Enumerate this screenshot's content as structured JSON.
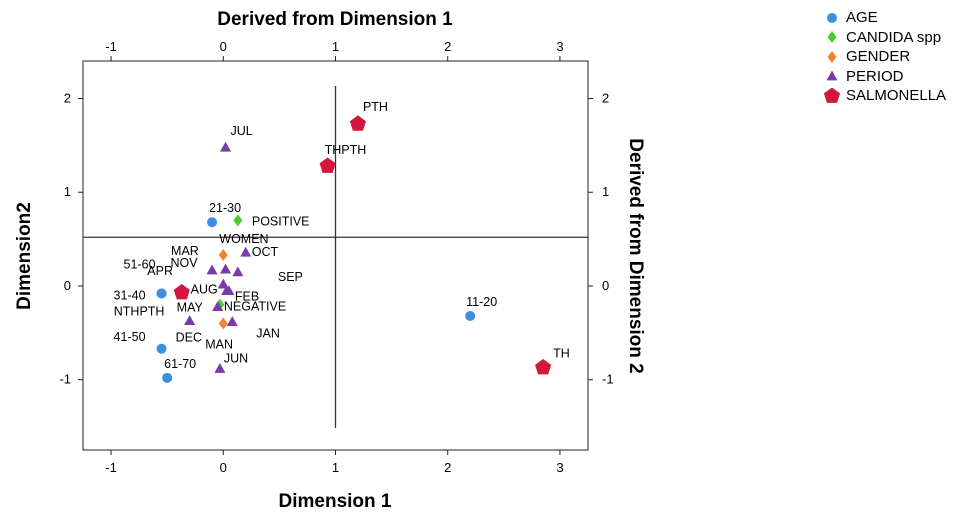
{
  "chart_data": {
    "type": "scatter",
    "title": "",
    "xlabel": "Dimension 1",
    "ylabel": "Dimension2",
    "top_axis_label": "Derived from Dimension 1",
    "right_axis_label": "Derived from Dimension 2",
    "xlim": [
      -1.25,
      3.25
    ],
    "ylim": [
      -1.75,
      2.4
    ],
    "xticks": [
      "-1",
      "0",
      "1",
      "2",
      "3"
    ],
    "yticks": [
      "-1",
      "0",
      "1",
      "2"
    ],
    "xtick_values": [
      -1,
      0,
      1,
      2,
      3
    ],
    "ytick_values": [
      -1,
      0,
      1,
      2
    ],
    "reference_lines": {
      "x": 1.0,
      "y": 0.52
    },
    "legend_position": "top-right",
    "series": [
      {
        "name": "AGE",
        "color": "#3d8fe0",
        "marker": "circle",
        "points": [
          {
            "label": "21-30",
            "x": -0.1,
            "y": 0.68
          },
          {
            "label": "51-60",
            "x": -0.55,
            "y": -0.08
          },
          {
            "label": "31-40",
            "x": -0.55,
            "y": -0.08
          },
          {
            "label": "41-50",
            "x": -0.55,
            "y": -0.67
          },
          {
            "label": "61-70",
            "x": -0.5,
            "y": -0.98
          },
          {
            "label": "11-20",
            "x": 2.2,
            "y": -0.32
          }
        ]
      },
      {
        "name": "CANDIDA spp",
        "color": "#4ccc2e",
        "marker": "diamond",
        "points": [
          {
            "label": "POSITIVE",
            "x": 0.13,
            "y": 0.7
          },
          {
            "label": "NEGATIVE",
            "x": -0.03,
            "y": -0.2
          }
        ]
      },
      {
        "name": "GENDER",
        "color": "#f08530",
        "marker": "diamond",
        "points": [
          {
            "label": "WOMEN",
            "x": 0.0,
            "y": 0.33
          },
          {
            "label": "MAN",
            "x": 0.0,
            "y": -0.4
          }
        ]
      },
      {
        "name": "PERIOD",
        "color": "#7a3ba6",
        "marker": "triangle",
        "points": [
          {
            "label": "JUL",
            "x": 0.02,
            "y": 1.48
          },
          {
            "label": "MAR",
            "x": -0.1,
            "y": 0.17
          },
          {
            "label": "NOV",
            "x": 0.02,
            "y": 0.18
          },
          {
            "label": "OCT",
            "x": 0.2,
            "y": 0.36
          },
          {
            "label": "SEP",
            "x": 0.13,
            "y": 0.15
          },
          {
            "label": "APR",
            "x": 0.0,
            "y": 0.02
          },
          {
            "label": "AUG",
            "x": 0.03,
            "y": -0.05
          },
          {
            "label": "FEB",
            "x": 0.05,
            "y": -0.05
          },
          {
            "label": "MAY",
            "x": -0.05,
            "y": -0.22
          },
          {
            "label": "DEC",
            "x": -0.3,
            "y": -0.37
          },
          {
            "label": "JAN",
            "x": 0.08,
            "y": -0.38
          },
          {
            "label": "JUN",
            "x": -0.03,
            "y": -0.88
          }
        ]
      },
      {
        "name": "SALMONELLA",
        "color": "#d3163d",
        "marker": "pentagon",
        "points": [
          {
            "label": "PTH",
            "x": 1.2,
            "y": 1.73
          },
          {
            "label": "THPTH",
            "x": 0.93,
            "y": 1.28
          },
          {
            "label": "NTHPTH",
            "x": -0.37,
            "y": -0.07
          },
          {
            "label": "TH",
            "x": 2.85,
            "y": -0.87
          }
        ]
      }
    ],
    "legend": [
      {
        "name": "AGE",
        "color": "#3d8fe0",
        "marker": "circle"
      },
      {
        "name": "CANDIDA spp",
        "color": "#4ccc2e",
        "marker": "diamond"
      },
      {
        "name": "GENDER",
        "color": "#f08530",
        "marker": "diamond"
      },
      {
        "name": "PERIOD",
        "color": "#7a3ba6",
        "marker": "triangle"
      },
      {
        "name": "SALMONELLA",
        "color": "#d3163d",
        "marker": "pentagon"
      }
    ]
  }
}
